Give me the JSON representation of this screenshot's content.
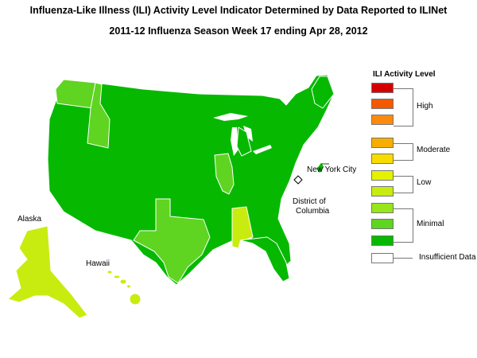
{
  "title_line1": "Influenza-Like Illness (ILI) Activity Level Indicator Determined by Data Reported to ILINet",
  "title_line2": "2011-12  Influenza Season Week  17 ending Apr 28, 2012",
  "map": {
    "labels": {
      "alaska": "Alaska",
      "hawaii": "Hawaii",
      "nyc": "New York City",
      "dc_line1": "District of",
      "dc_line2": "Columbia"
    },
    "base_level": "Minimal 1",
    "states_by_level": {
      "Low 1": [
        "Alaska",
        "Hawaii",
        "Alabama"
      ],
      "Minimal 2": [
        "Washington",
        "Idaho",
        "Illinois",
        "Texas"
      ],
      "Minimal 1": [
        "All other states",
        "New York City",
        "District of Columbia"
      ]
    }
  },
  "legend": {
    "title": "ILI Activity Level",
    "levels": [
      {
        "name": "High 3",
        "color": "#d40000"
      },
      {
        "name": "High 2",
        "color": "#f25900"
      },
      {
        "name": "High 1",
        "color": "#fb8a0d"
      },
      {
        "name": "Moderate 2",
        "color": "#f7ae00"
      },
      {
        "name": "Moderate 1",
        "color": "#f8dc00"
      },
      {
        "name": "Low 2",
        "color": "#e4f200"
      },
      {
        "name": "Low 1",
        "color": "#c8ec0f"
      },
      {
        "name": "Minimal 3",
        "color": "#97e61a"
      },
      {
        "name": "Minimal 2",
        "color": "#5fd421"
      },
      {
        "name": "Minimal 1",
        "color": "#06b900"
      },
      {
        "name": "Insufficient Data",
        "color": "#ffffff"
      }
    ],
    "groups": [
      {
        "label": "High"
      },
      {
        "label": "Moderate"
      },
      {
        "label": "Low"
      },
      {
        "label": "Minimal"
      },
      {
        "label": "Insufficient Data"
      }
    ]
  }
}
